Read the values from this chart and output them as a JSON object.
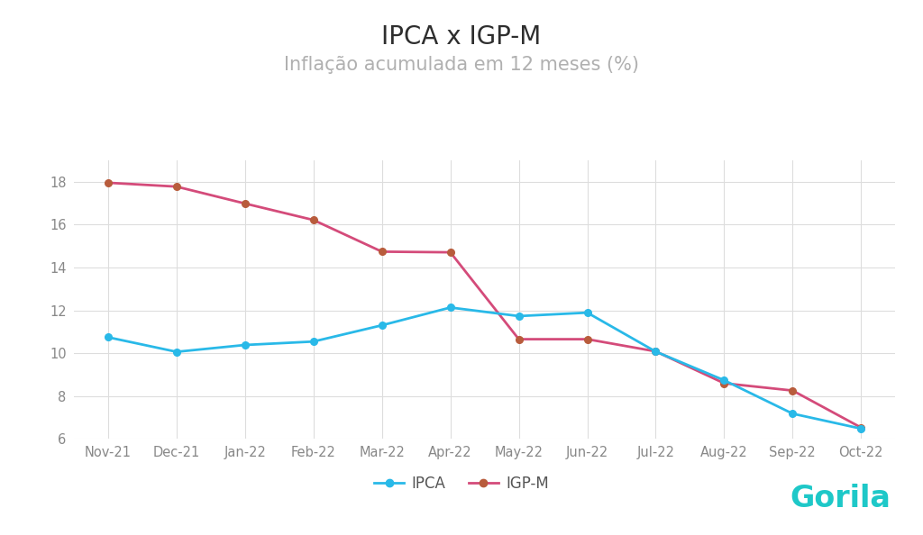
{
  "title": "IPCA x IGP-M",
  "subtitle": "Inflação acumulada em 12 meses (%)",
  "categories": [
    "Nov-21",
    "Dec-21",
    "Jan-22",
    "Feb-22",
    "Mar-22",
    "Apr-22",
    "May-22",
    "Jun-22",
    "Jul-22",
    "Aug-22",
    "Sep-22",
    "Oct-22"
  ],
  "ipca": [
    10.74,
    10.06,
    10.38,
    10.54,
    11.3,
    12.13,
    11.73,
    11.89,
    10.07,
    8.73,
    7.17,
    6.47
  ],
  "igpm": [
    17.96,
    17.78,
    16.99,
    16.22,
    14.74,
    14.71,
    10.65,
    10.65,
    10.08,
    8.59,
    8.25,
    6.52
  ],
  "ipca_color": "#29b9e8",
  "igpm_color": "#d44b7a",
  "igpm_marker_color": "#b85c3c",
  "title_color": "#2e2e2e",
  "subtitle_color": "#b0b0b0",
  "background_color": "#ffffff",
  "grid_color": "#dddddd",
  "legend_text_color": "#555555",
  "ylim": [
    6,
    19
  ],
  "yticks": [
    6,
    8,
    10,
    12,
    14,
    16,
    18
  ],
  "title_fontsize": 20,
  "subtitle_fontsize": 15,
  "tick_fontsize": 10.5,
  "legend_fontsize": 12,
  "gorila_text": "Gorila",
  "gorila_color": "#1ec8c8"
}
